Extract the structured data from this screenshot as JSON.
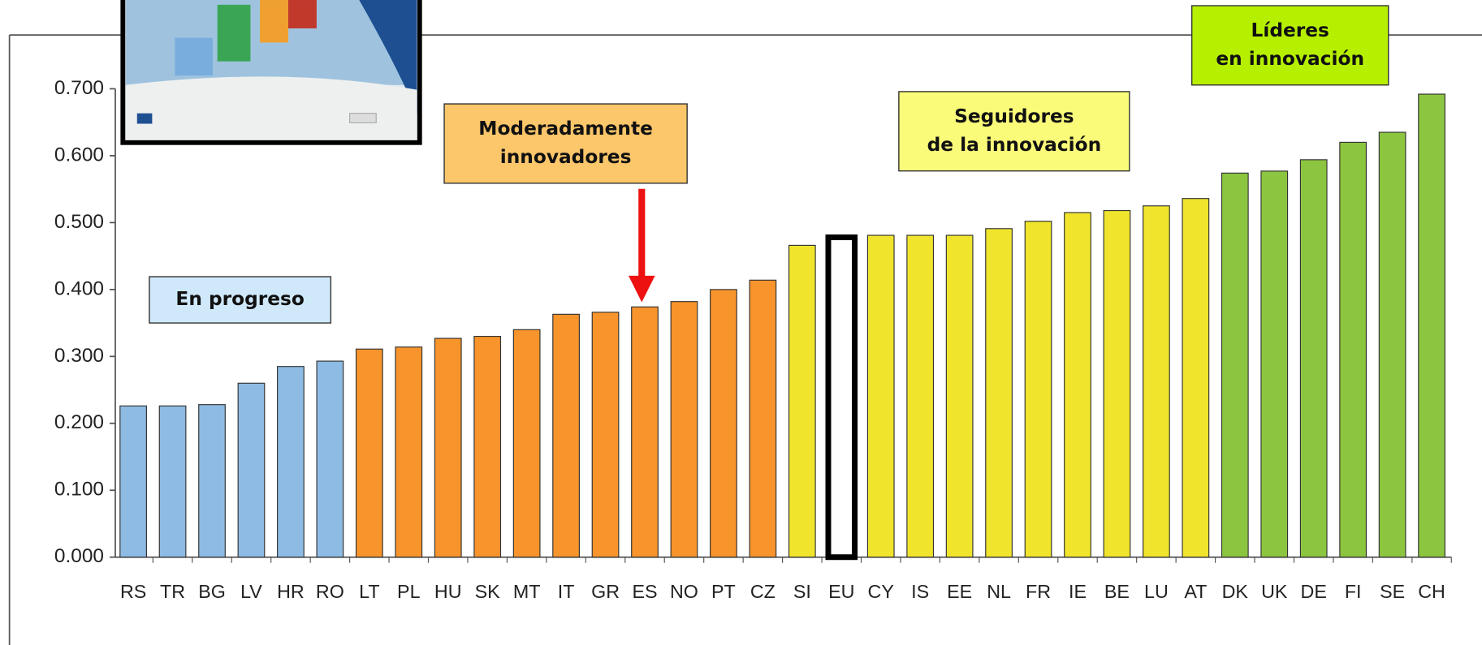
{
  "chart_data": {
    "type": "bar",
    "categories": [
      "RS",
      "TR",
      "BG",
      "LV",
      "HR",
      "RO",
      "LT",
      "PL",
      "HU",
      "SK",
      "MT",
      "IT",
      "GR",
      "ES",
      "NO",
      "PT",
      "CZ",
      "SI",
      "EU",
      "CY",
      "IS",
      "EE",
      "NL",
      "FR",
      "IE",
      "BE",
      "LU",
      "AT",
      "DK",
      "UK",
      "DE",
      "FI",
      "SE",
      "CH"
    ],
    "values": [
      0.226,
      0.226,
      0.228,
      0.26,
      0.285,
      0.293,
      0.311,
      0.314,
      0.327,
      0.33,
      0.34,
      0.363,
      0.366,
      0.374,
      0.382,
      0.4,
      0.414,
      0.466,
      0.478,
      0.481,
      0.481,
      0.481,
      0.491,
      0.502,
      0.515,
      0.518,
      0.525,
      0.536,
      0.574,
      0.577,
      0.594,
      0.62,
      0.635,
      0.692
    ],
    "colors": [
      "#8dbbe3",
      "#8dbbe3",
      "#8dbbe3",
      "#8dbbe3",
      "#8dbbe3",
      "#8dbbe3",
      "#f7942c",
      "#f7942c",
      "#f7942c",
      "#f7942c",
      "#f7942c",
      "#f7942c",
      "#f7942c",
      "#f7942c",
      "#f7942c",
      "#f7942c",
      "#f7942c",
      "#f0e52c",
      "#ffffff",
      "#f0e52c",
      "#f0e52c",
      "#f0e52c",
      "#f0e52c",
      "#f0e52c",
      "#f0e52c",
      "#f0e52c",
      "#f0e52c",
      "#f0e52c",
      "#8cc540",
      "#8cc540",
      "#8cc540",
      "#8cc540",
      "#8cc540",
      "#8cc540"
    ],
    "edgecolors": [
      "#333",
      "#333",
      "#333",
      "#333",
      "#333",
      "#333",
      "#333",
      "#333",
      "#333",
      "#333",
      "#333",
      "#333",
      "#333",
      "#333",
      "#333",
      "#333",
      "#333",
      "#333",
      "#000000",
      "#333",
      "#333",
      "#333",
      "#333",
      "#333",
      "#333",
      "#333",
      "#333",
      "#333",
      "#333",
      "#333",
      "#333",
      "#333",
      "#333",
      "#333"
    ],
    "ylim": [
      0,
      0.7
    ],
    "yticks": [
      {
        "value": 0,
        "label": "0.000"
      },
      {
        "value": 0.1,
        "label": "0.100"
      },
      {
        "value": 0.2,
        "label": "0.200"
      },
      {
        "value": 0.3,
        "label": "0.300"
      },
      {
        "value": 0.4,
        "label": "0.400"
      },
      {
        "value": 0.5,
        "label": "0.500"
      },
      {
        "value": 0.6,
        "label": "0.600"
      },
      {
        "value": 0.7,
        "label": "0.700"
      }
    ],
    "annotations": [
      {
        "lines": [
          "En progreso"
        ],
        "color": "#cfe9fb"
      },
      {
        "lines": [
          "Moderadamente",
          "innovadores"
        ],
        "color": "#fcc66a"
      },
      {
        "lines": [
          "Seguidores",
          "de la innovación"
        ],
        "color": "#fbfb7a"
      },
      {
        "lines": [
          "Líderes",
          "en innovación"
        ],
        "color": "#b6f000"
      }
    ]
  }
}
